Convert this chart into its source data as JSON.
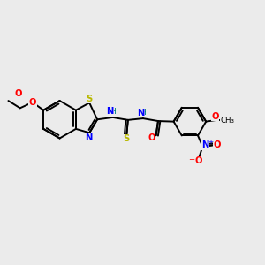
{
  "background_color": "#ebebeb",
  "bond_color": "#000000",
  "atom_colors": {
    "S": "#b8b800",
    "N": "#0000ff",
    "O": "#ff0000",
    "C": "#000000",
    "H": "#008080"
  },
  "figsize": [
    3.0,
    3.0
  ],
  "dpi": 100
}
